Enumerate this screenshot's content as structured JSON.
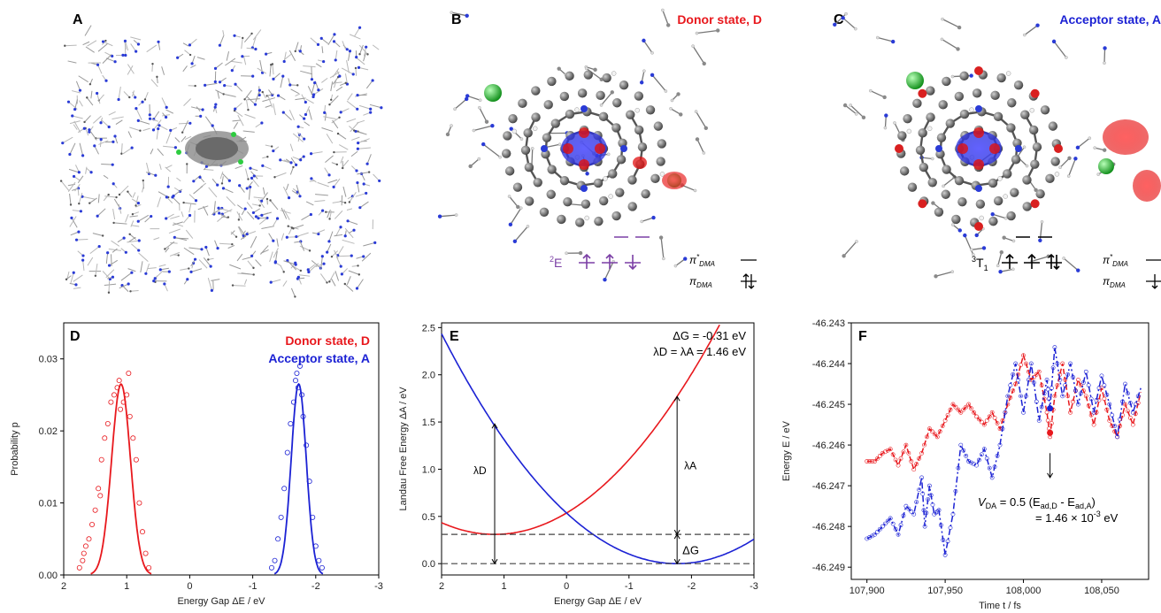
{
  "panels": {
    "A": {
      "label": "A"
    },
    "B": {
      "label": "B",
      "state": "Donor state, D",
      "state_color": "#e8181d",
      "term": "2E",
      "term_sup": "2",
      "term_main": "E",
      "level_hi": "π*DMA",
      "level_lo": "πDMA"
    },
    "C": {
      "label": "C",
      "state": "Acceptor state, A",
      "state_color": "#1c22d4",
      "term_sup": "3",
      "term_main": "T",
      "term_sub": "1",
      "level_hi": "π*DMA",
      "level_lo": "πDMA"
    }
  },
  "colors": {
    "red": "#e8181d",
    "blue": "#1c22d4",
    "purple": "#7b3fa5",
    "green": "#2ecc40"
  },
  "chart_data": [
    {
      "panel": "D",
      "type": "scatter",
      "title": "",
      "xlabel": "Energy Gap ΔE / eV",
      "ylabel": "Probability p",
      "xlim": [
        2,
        -3
      ],
      "ylim": [
        0,
        0.035
      ],
      "x_ticks": [
        "2",
        "1",
        "0",
        "-1",
        "-2",
        "-3"
      ],
      "y_ticks": [
        "0.00",
        "0.01",
        "0.02",
        "0.03"
      ],
      "legend": [
        "Donor state, D",
        "Acceptor state, A"
      ],
      "series": [
        {
          "name": "Donor state, D",
          "color": "#e8181d",
          "fit": "gaussian",
          "mean": 1.09,
          "peak": 0.0265,
          "sigma": 0.15,
          "points_x": [
            1.75,
            1.7,
            1.68,
            1.65,
            1.6,
            1.55,
            1.5,
            1.45,
            1.42,
            1.4,
            1.35,
            1.3,
            1.25,
            1.2,
            1.15,
            1.12,
            1.1,
            1.05,
            1.0,
            0.97,
            0.95,
            0.9,
            0.85,
            0.8,
            0.75,
            0.7,
            0.65
          ],
          "points_y": [
            0.001,
            0.002,
            0.003,
            0.004,
            0.005,
            0.007,
            0.009,
            0.012,
            0.011,
            0.016,
            0.019,
            0.021,
            0.024,
            0.025,
            0.026,
            0.027,
            0.023,
            0.024,
            0.025,
            0.028,
            0.022,
            0.019,
            0.016,
            0.01,
            0.006,
            0.003,
            0.001
          ]
        },
        {
          "name": "Acceptor state, A",
          "color": "#1c22d4",
          "fit": "gaussian",
          "mean": -1.73,
          "peak": 0.0265,
          "sigma": 0.12,
          "points_x": [
            -1.3,
            -1.35,
            -1.4,
            -1.45,
            -1.5,
            -1.55,
            -1.6,
            -1.65,
            -1.68,
            -1.7,
            -1.72,
            -1.75,
            -1.78,
            -1.8,
            -1.85,
            -1.9,
            -1.95,
            -2.0,
            -2.05,
            -2.1
          ],
          "points_y": [
            0.001,
            0.002,
            0.005,
            0.008,
            0.012,
            0.017,
            0.021,
            0.024,
            0.027,
            0.028,
            0.026,
            0.029,
            0.025,
            0.022,
            0.018,
            0.013,
            0.008,
            0.004,
            0.002,
            0.001
          ]
        }
      ]
    },
    {
      "panel": "E",
      "type": "line",
      "title": "",
      "xlabel": "Energy Gap ΔE / eV",
      "ylabel": "Landau Free Energy  ΔA / eV",
      "xlim": [
        2,
        -3
      ],
      "ylim": [
        -0.12,
        2.55
      ],
      "x_ticks": [
        "2",
        "1",
        "0",
        "-1",
        "-2",
        "-3"
      ],
      "y_ticks": [
        "0.0",
        "0.5",
        "1.0",
        "1.5",
        "2.0",
        "2.5"
      ],
      "annotations": {
        "dG": "ΔG = -0.31 eV",
        "lam": "λD = λA = 1.46 eV",
        "lamD": "λD",
        "lamA": "λA",
        "dG_arrow": "ΔG"
      },
      "dG_value": -0.31,
      "lambda": 1.46,
      "series": [
        {
          "name": "Donor state, D",
          "color": "#e8181d",
          "min_x": 1.15,
          "min_y": 0.31
        },
        {
          "name": "Acceptor state, A",
          "color": "#1c22d4",
          "min_x": -1.77,
          "min_y": 0.0
        }
      ]
    },
    {
      "panel": "F",
      "type": "line",
      "title": "",
      "xlabel": "Time t / fs",
      "ylabel": "Energy E / eV",
      "xlim": [
        107890,
        108080
      ],
      "ylim": [
        -46.2493,
        -46.243
      ],
      "x_ticks": [
        "107,900",
        "107,950",
        "108,000",
        "108,050"
      ],
      "y_ticks": [
        "-46.243",
        "-46.244",
        "-46.245",
        "-46.246",
        "-46.247",
        "-46.248",
        "-46.249"
      ],
      "annotation": {
        "line1": "V",
        "line1_sub": "DA",
        "line1_rest": " = 0.5 (E",
        "line1_sub2": "ad,D",
        "line1_mid": " - E",
        "line1_sub3": "ad,A",
        "line1_end": ")",
        "line2": "= 1.46 × 10",
        "line2_sup": "-3",
        "line2_end": " eV"
      },
      "crossing_t": 108017,
      "series": [
        {
          "name": "Donor state, D",
          "color": "#e8181d",
          "t": [
            107900,
            107905,
            107910,
            107915,
            107920,
            107925,
            107930,
            107935,
            107940,
            107945,
            107950,
            107955,
            107960,
            107965,
            107970,
            107975,
            107980,
            107985,
            107990,
            107995,
            108000,
            108005,
            108010,
            108015,
            108017,
            108020,
            108025,
            108030,
            108035,
            108040,
            108045,
            108050,
            108055,
            108060,
            108065,
            108070,
            108075
          ],
          "e": [
            -46.2464,
            -46.2464,
            -46.2462,
            -46.2461,
            -46.2465,
            -46.246,
            -46.2466,
            -46.2462,
            -46.2456,
            -46.2458,
            -46.2454,
            -46.245,
            -46.2452,
            -46.245,
            -46.2453,
            -46.2455,
            -46.2452,
            -46.2456,
            -46.245,
            -46.2445,
            -46.2438,
            -46.2444,
            -46.2442,
            -46.2452,
            -46.2458,
            -46.2448,
            -46.244,
            -46.2452,
            -46.2444,
            -46.2448,
            -46.2455,
            -46.2446,
            -46.2454,
            -46.2458,
            -46.245,
            -46.2455,
            -46.2447
          ]
        },
        {
          "name": "Acceptor state, A",
          "color": "#1c22d4",
          "t": [
            107900,
            107905,
            107910,
            107915,
            107920,
            107925,
            107930,
            107935,
            107937,
            107940,
            107943,
            107946,
            107950,
            107955,
            107960,
            107965,
            107970,
            107975,
            107980,
            107985,
            107990,
            107995,
            108000,
            108005,
            108010,
            108015,
            108017,
            108020,
            108025,
            108030,
            108035,
            108040,
            108045,
            108050,
            108055,
            108060,
            108065,
            108070,
            108075
          ],
          "e": [
            -46.2483,
            -46.2482,
            -46.248,
            -46.2478,
            -46.2482,
            -46.2475,
            -46.2477,
            -46.2468,
            -46.248,
            -46.247,
            -46.2477,
            -46.2476,
            -46.2487,
            -46.2477,
            -46.246,
            -46.2464,
            -46.2465,
            -46.2461,
            -46.2468,
            -46.246,
            -46.2448,
            -46.244,
            -46.2452,
            -46.244,
            -46.2454,
            -46.2444,
            -46.2451,
            -46.2436,
            -46.2448,
            -46.244,
            -46.245,
            -46.2442,
            -46.2452,
            -46.2443,
            -46.245,
            -46.2458,
            -46.2445,
            -46.2452,
            -46.2446
          ]
        }
      ]
    }
  ]
}
